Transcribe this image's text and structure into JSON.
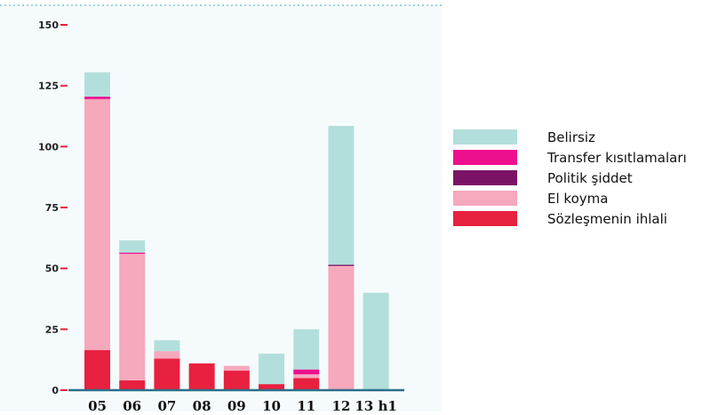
{
  "chart_data": {
    "type": "bar",
    "stacked": true,
    "categories": [
      "05",
      "06",
      "07",
      "08",
      "09",
      "10",
      "11",
      "12",
      "13 h1"
    ],
    "y_ticks": [
      0,
      25,
      50,
      75,
      100,
      125,
      150
    ],
    "y_tick_labels": [
      "0",
      "25",
      "50",
      "75",
      "100",
      "125",
      "150"
    ],
    "ylim": [
      0,
      150
    ],
    "series": [
      {
        "name": "Sözleşmenin ihlali",
        "color": "#e8203f",
        "values": [
          16.5,
          4,
          13,
          11,
          8,
          2.5,
          5,
          0,
          0
        ]
      },
      {
        "name": "El koyma",
        "color": "#f6a8bd",
        "values": [
          103,
          52,
          3,
          0,
          2,
          0,
          1.5,
          51,
          0
        ]
      },
      {
        "name": "Politik şiddet",
        "color": "#7b1266",
        "values": [
          0,
          0,
          0,
          0,
          0,
          0,
          0,
          0.5,
          0
        ]
      },
      {
        "name": "Transfer kısıtlamaları",
        "color": "#ee0f8e",
        "values": [
          1,
          0.5,
          0,
          0,
          0,
          0,
          2,
          0,
          0
        ]
      },
      {
        "name": "Belirsiz",
        "color": "#b2dfdb",
        "values": [
          10,
          5,
          4.5,
          0,
          0,
          12.5,
          16.5,
          57,
          40
        ]
      }
    ],
    "legend": {
      "position": "right",
      "items": [
        {
          "label": "Belirsiz",
          "color": "#b2dfdb"
        },
        {
          "label": "Transfer kısıtlamaları",
          "color": "#ee0f8e"
        },
        {
          "label": "Politik şiddet",
          "color": "#7b1266"
        },
        {
          "label": "El koyma",
          "color": "#f6a8bd"
        },
        {
          "label": "Sözleşmenin ihlali",
          "color": "#e8203f"
        }
      ]
    },
    "colors": {
      "plot_background": "#f5fbfc",
      "axis": "#2a6f8a",
      "tick_mark": "#e8203f",
      "top_border": "#7ec4d4"
    }
  }
}
